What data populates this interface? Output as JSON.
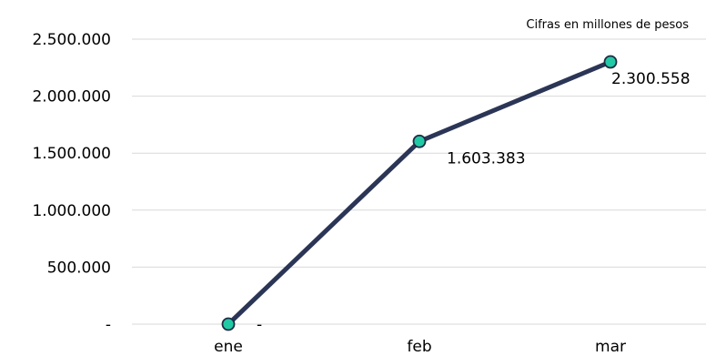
{
  "chart_data": {
    "type": "line",
    "annotation": "Cifras en millones de pesos",
    "categories": [
      "ene",
      "feb",
      "mar"
    ],
    "values": [
      0,
      1603383,
      2300558
    ],
    "data_labels": [
      "-",
      "1.603.383",
      "2.300.558"
    ],
    "ylim": [
      0,
      2500000
    ],
    "y_ticks": [
      0,
      500000,
      1000000,
      1500000,
      2000000,
      2500000
    ],
    "y_tick_labels": [
      "-",
      "500.000",
      "1.000.000",
      "1.500.000",
      "2.000.000",
      "2.500.000"
    ],
    "grid": true,
    "legend": "none",
    "colors": {
      "line": "#2b3556",
      "marker_fill": "#22c9a5",
      "marker_stroke": "#1f2a44",
      "grid": "#d9d9d9"
    }
  }
}
